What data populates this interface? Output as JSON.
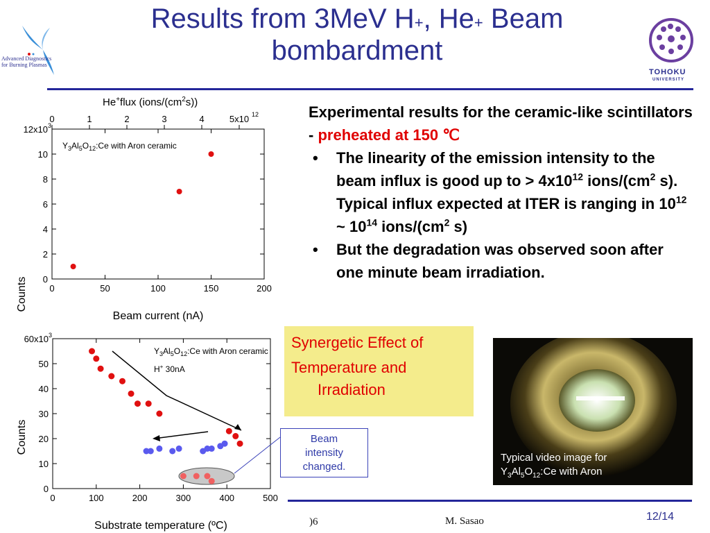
{
  "slide": {
    "title_line1_a": "Results from 3MeV H",
    "title_sup1": "+",
    "title_line1_b": ", He",
    "title_sup2": "+",
    "title_line1_c": " Beam",
    "title_line2": "bombardment",
    "left_logo_text": [
      "Advanced Diagnostics",
      "for Burning Plasmas"
    ],
    "right_logo_text": [
      "TOHOKU",
      "UNIVERSITY"
    ],
    "page_number": "12/14",
    "footer_author": "M. Sasao",
    "footer_left_fragment": ")6"
  },
  "bullets": {
    "heading_a": "Experimental results for the ceramic-like scintillators - ",
    "heading_red": "preheated at 150 ℃",
    "item1_a": "The linearity of the emission intensity to the beam influx is good up to > 4x10",
    "item1_sup1": "12",
    "item1_b": " ions/(cm",
    "item1_sup2": "2",
    "item1_c": " s). Typical influx expected at ITER is ranging in 10",
    "item1_sup3": "12",
    "item1_d": " ~ 10",
    "item1_sup4": "14",
    "item1_e": " ions/(cm",
    "item1_sup5": "2",
    "item1_f": " s)",
    "item2": "But the degradation was observed soon after one minute beam irradiation."
  },
  "callouts": {
    "synergy_line1": "Synergetic Effect of",
    "synergy_line2": "Temperature and",
    "synergy_line3": "Irradiation",
    "beam_change": [
      "Beam",
      "intensity",
      "changed."
    ]
  },
  "photo": {
    "caption_line1": "Typical video image for",
    "caption_line2_a": "Y",
    "caption_line2_sub1": "3",
    "caption_line2_b": "Al",
    "caption_line2_sub2": "5",
    "caption_line2_c": "O",
    "caption_line2_sub3": "12",
    "caption_line2_d": ":Ce with Aron"
  },
  "chart_data": [
    {
      "type": "scatter",
      "title": "",
      "xlabel": "Beam current (nA)",
      "ylabel": "Counts",
      "top_axis_label": "He",
      "top_axis_label_sup1": "+",
      "top_axis_label_b": "flux (ions/(cm",
      "top_axis_label_sup2": "2",
      "top_axis_label_c": "s))",
      "annotation": "Y3Al5O12:Ce with Aron ceramic",
      "xlim": [
        0,
        200
      ],
      "ylim": [
        0,
        12000
      ],
      "x_ticks": [
        "0",
        "50",
        "100",
        "150",
        "200"
      ],
      "y_ticks": [
        "0",
        "2",
        "4",
        "6",
        "8",
        "10",
        "12x10"
      ],
      "y_tick_exp": "3",
      "top_ticks": [
        "0",
        "1",
        "2",
        "3",
        "4",
        "5x10"
      ],
      "top_tick_exp": "12",
      "series": [
        {
          "color": "#e01010",
          "x": [
            20,
            120,
            150
          ],
          "y": [
            1000,
            7000,
            10000
          ]
        }
      ]
    },
    {
      "type": "scatter",
      "title": "",
      "xlabel": "Substrate temperature (ºC)",
      "ylabel": "Counts",
      "annotation_line1": "Y3Al5O12:Ce with Aron ceramic",
      "annotation_line2": "H+ 30nA",
      "xlim": [
        0,
        500
      ],
      "ylim": [
        0,
        60000
      ],
      "x_ticks": [
        "0",
        "100",
        "200",
        "300",
        "400",
        "500"
      ],
      "y_ticks": [
        "0",
        "10",
        "20",
        "30",
        "40",
        "50",
        "60x10"
      ],
      "y_tick_exp": "3",
      "series": [
        {
          "color": "#e01010",
          "x": [
            90,
            100,
            110,
            135,
            160,
            180,
            195,
            220,
            245,
            405,
            420,
            430
          ],
          "y": [
            55000,
            52000,
            48000,
            45000,
            43000,
            38000,
            34000,
            34000,
            30000,
            23000,
            21000,
            18000
          ]
        },
        {
          "color": "#5a5aee",
          "x": [
            215,
            225,
            245,
            275,
            290,
            345,
            355,
            365,
            385,
            395
          ],
          "y": [
            15000,
            15000,
            16000,
            15000,
            16000,
            15000,
            16000,
            16000,
            17000,
            18000
          ]
        },
        {
          "color": "#f06060",
          "x": [
            300,
            330,
            355,
            365
          ],
          "y": [
            5000,
            5000,
            5000,
            3000
          ]
        }
      ]
    }
  ]
}
